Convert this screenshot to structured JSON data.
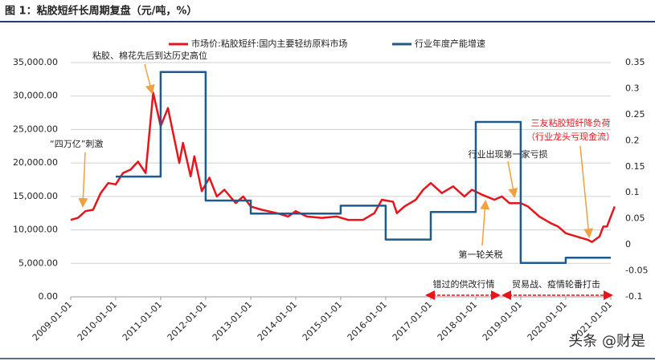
{
  "chart_data": {
    "type": "line",
    "title": "图 1：粘胶短纤长周期复盘（元/吨，%）",
    "watermark": "头条 @财是",
    "xlim": [
      "2009-01-01",
      "2021-01-01"
    ],
    "xticks": [
      "2009-01-01",
      "2010-01-01",
      "2011-01-01",
      "2012-01-01",
      "2013-01-01",
      "2014-01-01",
      "2015-01-01",
      "2016-01-01",
      "2017-01-01",
      "2018-01-01",
      "2019-01-01",
      "2020-01-01",
      "2021-01-01"
    ],
    "ylim": [
      0,
      35000
    ],
    "yticks": [
      {
        "value": 0,
        "label": "0.00"
      },
      {
        "value": 5000,
        "label": "5,000.00"
      },
      {
        "value": 10000,
        "label": "10,000.00"
      },
      {
        "value": 15000,
        "label": "15,000.00"
      },
      {
        "value": 20000,
        "label": "20,000.00"
      },
      {
        "value": 25000,
        "label": "25,000.00"
      },
      {
        "value": 30000,
        "label": "30,000.00"
      },
      {
        "value": 35000,
        "label": "35,000.00"
      }
    ],
    "y2lim": [
      -0.1,
      0.35
    ],
    "y2ticks": [
      -0.1,
      -0.05,
      0,
      0.05,
      0.1,
      0.15,
      0.2,
      0.25,
      0.3,
      0.35
    ],
    "series": [
      {
        "name": "市场价:粘胶短纤:国内主要轻纺原料市场",
        "color": "#e8141c",
        "x": [
          "2009-01-01",
          "2009-03-01",
          "2009-05-01",
          "2009-07-01",
          "2009-09-01",
          "2009-11-01",
          "2010-01-01",
          "2010-03-01",
          "2010-05-01",
          "2010-07-01",
          "2010-09-01",
          "2010-11-01",
          "2011-01-01",
          "2011-03-01",
          "2011-06-01",
          "2011-07-01",
          "2011-09-01",
          "2011-10-01",
          "2011-12-01",
          "2012-02-01",
          "2012-04-01",
          "2012-06-01",
          "2012-09-01",
          "2012-11-01",
          "2013-01-01",
          "2013-04-01",
          "2013-08-01",
          "2013-11-01",
          "2014-01-01",
          "2014-04-01",
          "2014-08-01",
          "2014-12-01",
          "2015-03-01",
          "2015-07-01",
          "2015-10-01",
          "2015-12-01",
          "2016-03-01",
          "2016-04-01",
          "2016-06-01",
          "2016-09-01",
          "2016-11-01",
          "2017-01-01",
          "2017-04-01",
          "2017-07-01",
          "2017-10-01",
          "2017-12-01",
          "2018-03-01",
          "2018-06-01",
          "2018-08-01",
          "2018-10-01",
          "2019-01-01",
          "2019-03-01",
          "2019-06-01",
          "2019-09-01",
          "2019-11-01",
          "2020-01-01",
          "2020-04-01",
          "2020-07-01",
          "2020-08-01",
          "2020-10-01",
          "2020-11-01",
          "2020-12-01",
          "2021-01-01",
          "2021-02-01"
        ],
        "values": [
          11500,
          11800,
          12800,
          13000,
          15500,
          17000,
          16800,
          18500,
          19000,
          20200,
          18500,
          30500,
          25500,
          28200,
          20000,
          23000,
          18000,
          21000,
          15800,
          17800,
          15000,
          16000,
          14000,
          15000,
          13500,
          13000,
          12500,
          12000,
          12800,
          12000,
          11800,
          12000,
          11500,
          11500,
          12500,
          14500,
          14200,
          12500,
          13500,
          14500,
          16000,
          17000,
          15500,
          16500,
          15000,
          16000,
          15200,
          14500,
          15000,
          14000,
          14000,
          13500,
          12000,
          11000,
          10500,
          9500,
          9000,
          8500,
          8200,
          9000,
          10500,
          10500,
          12000,
          13500
        ]
      },
      {
        "name": "行业年度产能增速",
        "color": "#1f5a8c",
        "axis": "y2",
        "drawstyle": "steps-post",
        "x": [
          "2010-01-01",
          "2011-01-01",
          "2012-01-01",
          "2013-01-01",
          "2014-01-01",
          "2015-01-01",
          "2016-01-01",
          "2017-01-01",
          "2018-01-01",
          "2019-01-01",
          "2020-01-01",
          "2021-01-01"
        ],
        "values": [
          0.131,
          0.332,
          0.085,
          0.06,
          0.06,
          0.075,
          0.01,
          0.063,
          0.236,
          -0.035,
          -0.025,
          -0.025
        ]
      }
    ],
    "annotations": [
      "粘胶、棉花先后到达历史高位",
      "“四万亿”刺激",
      "三友粘胶短纤降负荷",
      "（行业龙头亏现金流）",
      "行业出现第一家亏损",
      "第一轮关税",
      "错过的供改行情",
      "贸易战、疫情轮番打击"
    ]
  }
}
